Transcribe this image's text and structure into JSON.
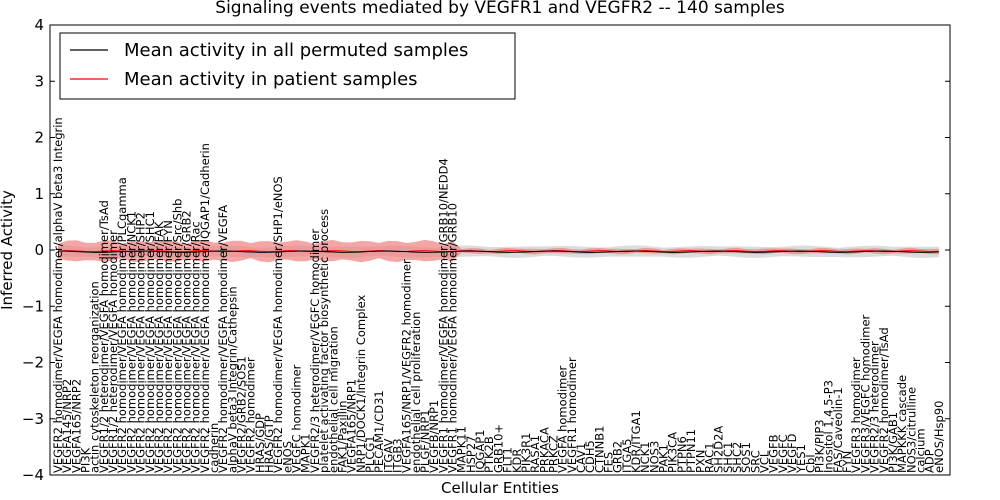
{
  "chart_data": {
    "type": "line",
    "title": "Signaling events mediated by VEGFR1 and VEGFR2 -- 140 samples",
    "xlabel": "Cellular Entities",
    "ylabel": "Inferred Activity",
    "ylim": [
      -4,
      4
    ],
    "yticks": [
      -4,
      -3,
      -2,
      -1,
      0,
      1,
      2,
      3,
      4
    ],
    "legend_position": "top-left",
    "series": [
      {
        "name": "Mean activity in all permuted samples",
        "color": "#000000"
      },
      {
        "name": "Mean activity in patient samples",
        "color": "#ff0000"
      }
    ],
    "band_colors": {
      "permuted": "#d3d3d3",
      "patient": "#f08080"
    },
    "entities": [
      "VEGFR2 homodimer/VEGFA homodimer/alphaV beta3 Integrin",
      "VEGFA145/NRP2",
      "VEGFA165/NRP2",
      "PI3K",
      "actin cytoskeleton reorganization",
      "VEGFR1/2 heterodimer/VEGFA homodimer/TsAd",
      "VEGFR1/2 heterodimer/VEGFA homodimer",
      "VEGFR2 homodimer/VEGFA homodimer/PLCgamma",
      "VEGFR2 homodimer/VEGFA homodimer/NCK1",
      "VEGFR2 homodimer/VEGFA homodimer/SHP2",
      "VEGFR2 homodimer/VEGFA homodimer/SHC1",
      "VEGFR2 homodimer/VEGFA homodimer/FAK",
      "VEGFR2 homodimer/VEGFA homodimer/FYN",
      "VEGFR2 homodimer/VEGFA homodimer/Src/Shb",
      "VEGFR2 homodimer/VEGFA homodimer/GRB2",
      "VEGFR2 homodimer/VEGFA homodimer/Rac",
      "VEGFR2 homodimer/VEGFA homodimer/IQGAP1/Cadherin",
      "cadherin",
      "VEGFR2 homodimer/VEGFA homodimer/VEGFA",
      "alphaV beta3 Integrin/Cathepsin",
      "VEGFR2/GRB2/SOS1",
      "VEGFR2 homodimer",
      "HRAS/GDP",
      "HRAS/GTP",
      "VEGFR2 homodimer/VEGFA homodimer/SHP1/eNOS",
      "eNOS",
      "VEGFC homodimer",
      "MAPK1",
      "VEGFR2/3 heterodimer/VEGFC homodimer",
      "platelet activating factor biosynthetic process",
      "endothelial cell migration",
      "FAK1/Paxillin",
      "VEGFA165/NRP1",
      "NRP1/DOCK1/Integrin Complex",
      "PLCG1",
      "PECAM1/CD31",
      "ITGAV",
      "ITGB3",
      "VEGFA165/NRP1/VEGFR2 homodimer",
      "endothelial cell proliferation",
      "PLGF/NRP1",
      "VEGFB/NRP1",
      "VEGFR1 homodimer/VEGFA homodimer/GRB10/NEDD4",
      "VEGFR1 homodimer/VEGFA homodimer/GRB10",
      "MAPK11",
      "HSP27",
      "IQGAP1",
      "PTK2B",
      "GRB10+",
      "FLT1",
      "KDR",
      "PIK3R1",
      "RASA1",
      "PRKACA",
      "PRKCZ",
      "VEGFA homodimer",
      "VEGFR1 homodimer",
      "CAV1",
      "CDH5",
      "CTNNB1",
      "FES",
      "GRB2",
      "ITGA5",
      "KDR/ITGA1",
      "NCK1",
      "NOS3",
      "PAK1",
      "PIK3CA",
      "PTPN6",
      "PTPN11",
      "PXN",
      "RAC1",
      "SH2D2A",
      "SHC1",
      "SHC2",
      "SOS1",
      "SRC",
      "VCL",
      "VEGFB",
      "VEGFC",
      "VEGFD",
      "YES1",
      "Cbl",
      "PI3K/PIP3",
      "Inositol 1,4,5-P3",
      "FAS/Caveolin-1",
      "FYN",
      "VEGFR3 homodimer",
      "VEGFR3/VEGFC homodimer",
      "VEGFR2/3 heterodimer",
      "VEGFR2 homodimer/TsAd",
      "PI3K/GAB1",
      "MAPKKK cascade",
      "NOS3/citrulline",
      "calcium",
      "ADP",
      "eNOS/Hsp90"
    ]
  }
}
